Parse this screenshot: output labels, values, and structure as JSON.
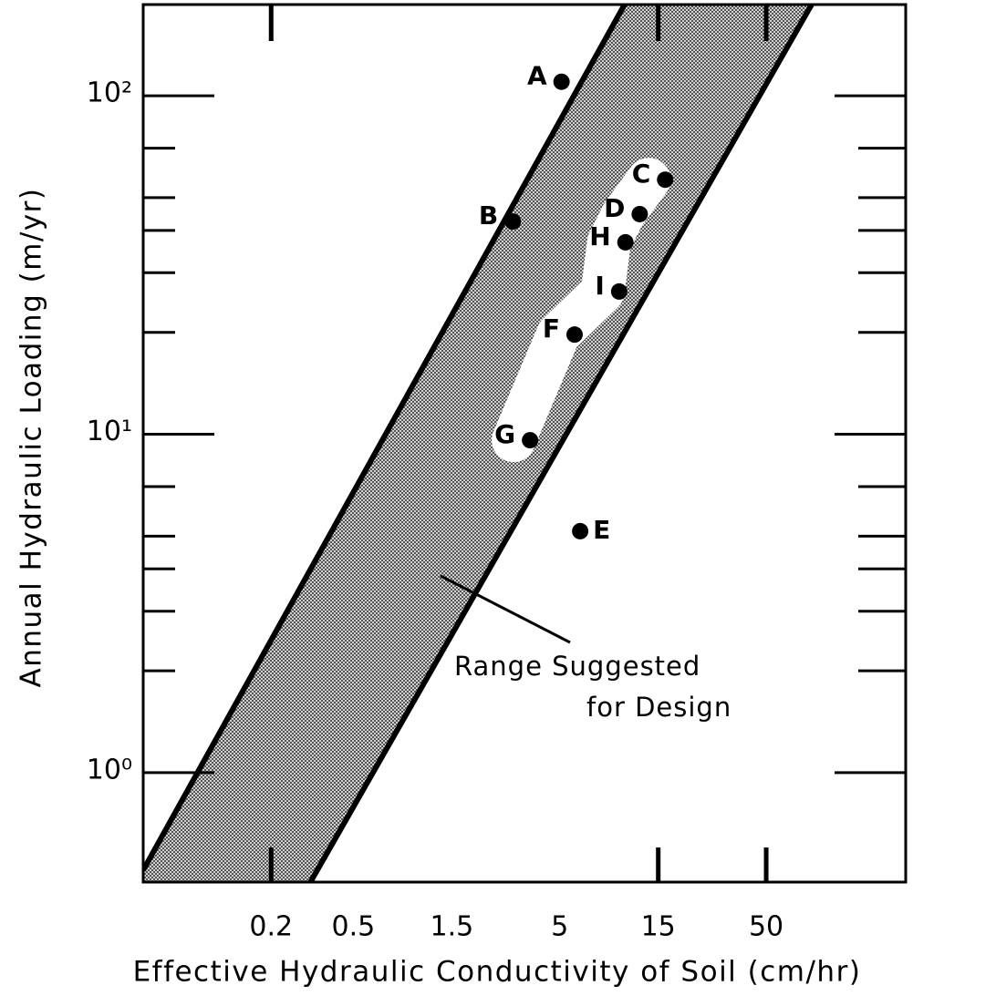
{
  "chart_data": {
    "type": "scatter",
    "x_label": "Effective Hydraulic Conductivity of Soil (cm/hr)",
    "y_label": "Annual Hydraulic Loading (m/yr)",
    "xscale": "log",
    "yscale": "log",
    "xlim": [
      0.048,
      237
    ],
    "ylim": [
      0.475,
      186
    ],
    "xticks": [
      0.2,
      0.5,
      1.5,
      5,
      15,
      50
    ],
    "xtick_marks": [
      0.2,
      15,
      50
    ],
    "yticks": [
      {
        "value": 1,
        "label": "10⁰"
      },
      {
        "value": 10,
        "label": "10¹"
      },
      {
        "value": 100,
        "label": "10²"
      }
    ],
    "y_minor_ticks": [
      2,
      3,
      4,
      5,
      7,
      20,
      30,
      40,
      50,
      70
    ],
    "points": {
      "labels": [
        "A",
        "B",
        "C",
        "D",
        "H",
        "I",
        "F",
        "G",
        "E"
      ],
      "x": [
        5.1,
        2.96,
        16.2,
        12.2,
        10.4,
        9.7,
        5.9,
        3.59,
        6.28
      ],
      "y": [
        110,
        42.5,
        56.5,
        44.7,
        36.9,
        26.4,
        19.7,
        9.6,
        5.17
      ],
      "color": "#000000"
    },
    "band": {
      "upper_x": [
        0.048,
        10.3
      ],
      "upper_y": [
        0.515,
        186
      ],
      "lower_x": [
        0.31,
        83
      ],
      "lower_y": [
        0.475,
        186
      ],
      "color": "#8c8c8c"
    },
    "annotation": [
      "Range Suggested",
      "for Design"
    ]
  }
}
